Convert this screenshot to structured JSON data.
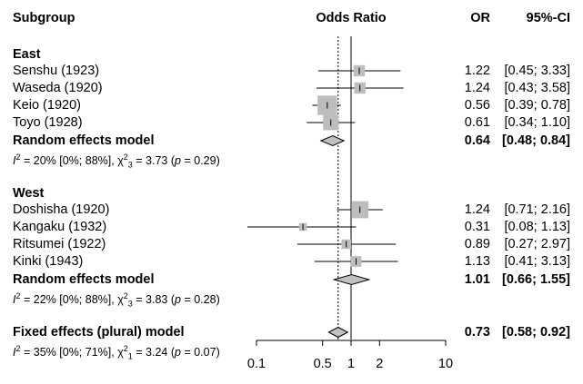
{
  "headers": {
    "subgroup": "Subgroup",
    "odds_ratio": "Odds Ratio",
    "or": "OR",
    "ci": "95%-CI"
  },
  "colors": {
    "box": "#bdbdbd",
    "diamond": "#c0c0c0",
    "line": "#000000"
  },
  "groups": [
    {
      "name": "East",
      "studies": [
        {
          "label": "Senshu (1923)",
          "or": "1.22",
          "ci": "[0.45; 3.33]"
        },
        {
          "label": "Waseda (1920)",
          "or": "1.24",
          "ci": "[0.43; 3.58]"
        },
        {
          "label": "Keio (1920)",
          "or": "0.56",
          "ci": "[0.39; 0.78]"
        },
        {
          "label": "Toyo (1928)",
          "or": "0.61",
          "ci": "[0.34; 1.10]"
        }
      ],
      "model": {
        "label": "Random effects model",
        "or": "0.64",
        "ci": "[0.48; 0.84]"
      },
      "het": {
        "i2": "20%",
        "i2_ci": "[0%; 88%]",
        "df": "3",
        "chi2": "3.73",
        "p": "0.29"
      }
    },
    {
      "name": "West",
      "studies": [
        {
          "label": "Doshisha (1920)",
          "or": "1.24",
          "ci": "[0.71; 2.16]"
        },
        {
          "label": "Kangaku (1932)",
          "or": "0.31",
          "ci": "[0.08; 1.13]"
        },
        {
          "label": "Ritsumei (1922)",
          "or": "0.89",
          "ci": "[0.27; 2.97]"
        },
        {
          "label": "Kinki (1943)",
          "or": "1.13",
          "ci": "[0.41; 3.13]"
        }
      ],
      "model": {
        "label": "Random effects model",
        "or": "1.01",
        "ci": "[0.66; 1.55]"
      },
      "het": {
        "i2": "22%",
        "i2_ci": "[0%; 88%]",
        "df": "3",
        "chi2": "3.83",
        "p": "0.28"
      }
    }
  ],
  "overall": {
    "label": "Fixed effects (plural) model",
    "or": "0.73",
    "ci": "[0.58; 0.92]",
    "het": {
      "i2": "35%",
      "i2_ci": "[0%; 71%]",
      "df": "1",
      "chi2": "3.24",
      "p": "0.07"
    }
  },
  "axis": {
    "ticks": [
      "0.1",
      "0.5",
      "1",
      "2",
      "10"
    ]
  },
  "chart_data": {
    "type": "forest",
    "x_scale": "log",
    "xlim": [
      0.1,
      10
    ],
    "x_ticks": [
      0.1,
      0.5,
      1,
      2,
      10
    ],
    "reference_line": 1,
    "pooled_reference_line": 0.73,
    "studies": [
      {
        "group": "East",
        "label": "Senshu (1923)",
        "or": 1.22,
        "lower": 0.45,
        "upper": 3.33,
        "weight": 1.0
      },
      {
        "group": "East",
        "label": "Waseda (1920)",
        "or": 1.24,
        "lower": 0.43,
        "upper": 3.58,
        "weight": 1.0
      },
      {
        "group": "East",
        "label": "Keio (1920)",
        "or": 0.56,
        "lower": 0.39,
        "upper": 0.78,
        "weight": 2.4
      },
      {
        "group": "East",
        "label": "Toyo (1928)",
        "or": 0.61,
        "lower": 0.34,
        "upper": 1.1,
        "weight": 1.7
      },
      {
        "group": "West",
        "label": "Doshisha (1920)",
        "or": 1.24,
        "lower": 0.71,
        "upper": 2.16,
        "weight": 2.0
      },
      {
        "group": "West",
        "label": "Kangaku (1932)",
        "or": 0.31,
        "lower": 0.08,
        "upper": 1.13,
        "weight": 0.4
      },
      {
        "group": "West",
        "label": "Ritsumei (1922)",
        "or": 0.89,
        "lower": 0.27,
        "upper": 2.97,
        "weight": 0.7
      },
      {
        "group": "West",
        "label": "Kinki (1943)",
        "or": 1.13,
        "lower": 0.41,
        "upper": 3.13,
        "weight": 0.9
      }
    ],
    "models": [
      {
        "label": "Random effects model",
        "group": "East",
        "or": 0.64,
        "lower": 0.48,
        "upper": 0.84
      },
      {
        "label": "Random effects model",
        "group": "West",
        "or": 1.01,
        "lower": 0.66,
        "upper": 1.55
      },
      {
        "label": "Fixed effects (plural) model",
        "group": "overall",
        "or": 0.73,
        "lower": 0.58,
        "upper": 0.92
      }
    ]
  }
}
